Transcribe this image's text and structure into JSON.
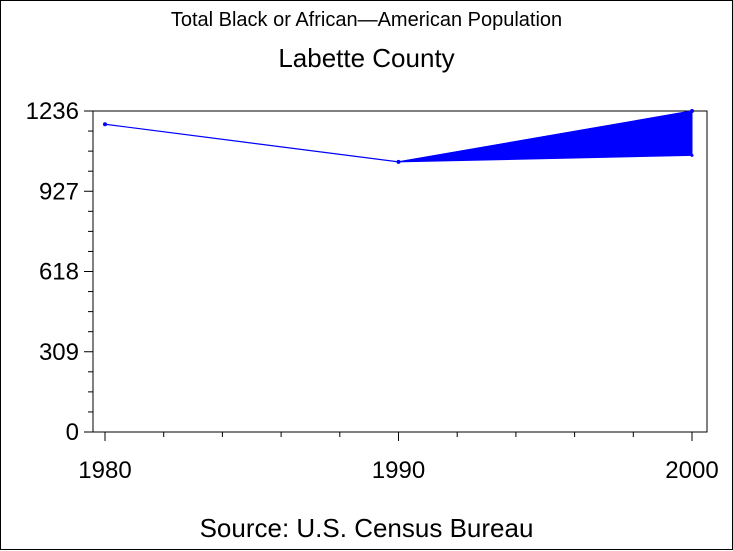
{
  "title": "Total Black or African—American Population",
  "subtitle": "Labette County",
  "footnote": "Source: U.S. Census Bureau",
  "colors": {
    "line": "#0000ff",
    "band": "#0000ff",
    "axis": "#000000"
  },
  "chart_data": {
    "type": "line",
    "title": "Total Black or African—American Population",
    "subtitle": "Labette County",
    "xlabel": "",
    "ylabel": "",
    "x": [
      1980,
      1990,
      2000
    ],
    "x_ticks": [
      "1980",
      "1990",
      "2000"
    ],
    "y_ticks": [
      "0",
      "309",
      "618",
      "927",
      "1236"
    ],
    "ylim": [
      0,
      1236
    ],
    "xlim": [
      1980,
      2000
    ],
    "series": [
      {
        "values": [
          1185,
          1040,
          1236
        ]
      }
    ],
    "band": {
      "x": [
        1990,
        2000
      ],
      "low": [
        1040,
        1065
      ],
      "high": [
        1040,
        1236
      ]
    },
    "grid": false,
    "legend": "none"
  }
}
